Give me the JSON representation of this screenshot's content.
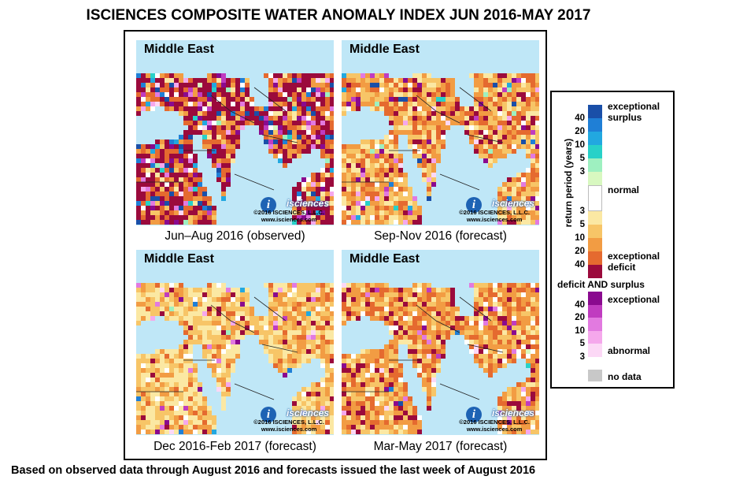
{
  "title": "ISCIENCES COMPOSITE WATER ANOMALY INDEX JUN 2016-MAY 2017",
  "footnote": "Based on observed data through August 2016 and forecasts issued the last week of August 2016",
  "panels": [
    {
      "region": "Middle East",
      "caption": "Jun–Aug 2016 (observed)",
      "copyright": "©2016 ISCIENCES, L.L.C.",
      "website": "www.isciences.com",
      "brand": "isciences"
    },
    {
      "region": "Middle East",
      "caption": "Sep-Nov 2016 (forecast)",
      "copyright": "©2016 ISCIENCES, L.L.C.",
      "website": "www.isciences.com",
      "brand": "isciences"
    },
    {
      "region": "Middle East",
      "caption": "Dec 2016-Feb 2017 (forecast)",
      "copyright": "©2016 ISCIENCES, L.L.C.",
      "website": "www.isciences.com",
      "brand": "isciences"
    },
    {
      "region": "Middle East",
      "caption": "Mar-May 2017 (forecast)",
      "copyright": "©2016 ISCIENCES, L.L.C.",
      "website": "www.isciences.com",
      "brand": "isciences"
    }
  ],
  "legend": {
    "axis_title": "return period (years)",
    "surplus_colors": [
      "#1a4fa8",
      "#1f7fd6",
      "#22a8e0",
      "#28d1c8",
      "#9ef0c0",
      "#d8f8c0"
    ],
    "surplus_ticks": [
      "40",
      "20",
      "10",
      "5",
      "3"
    ],
    "normal_color": "#ffffff",
    "deficit_colors": [
      "#fbe8a3",
      "#f7c567",
      "#f29c43",
      "#e56a2f",
      "#9b0a3c"
    ],
    "deficit_ticks": [
      "3",
      "5",
      "10",
      "20",
      "40"
    ],
    "label_exceptional_surplus": "exceptional\nsurplus",
    "label_normal": "normal",
    "label_exceptional_deficit": "exceptional\ndeficit",
    "both_title": "deficit AND surplus",
    "both_colors": [
      "#8a0a8f",
      "#c03cc0",
      "#e27ae0",
      "#f5a8ec",
      "#fcd8f6"
    ],
    "both_ticks": [
      "40",
      "20",
      "10",
      "5",
      "3"
    ],
    "label_both_exceptional": "exceptional",
    "label_both_abnormal": "abnormal",
    "nodata_color": "#c8c8c8",
    "label_no_data": "no data"
  }
}
